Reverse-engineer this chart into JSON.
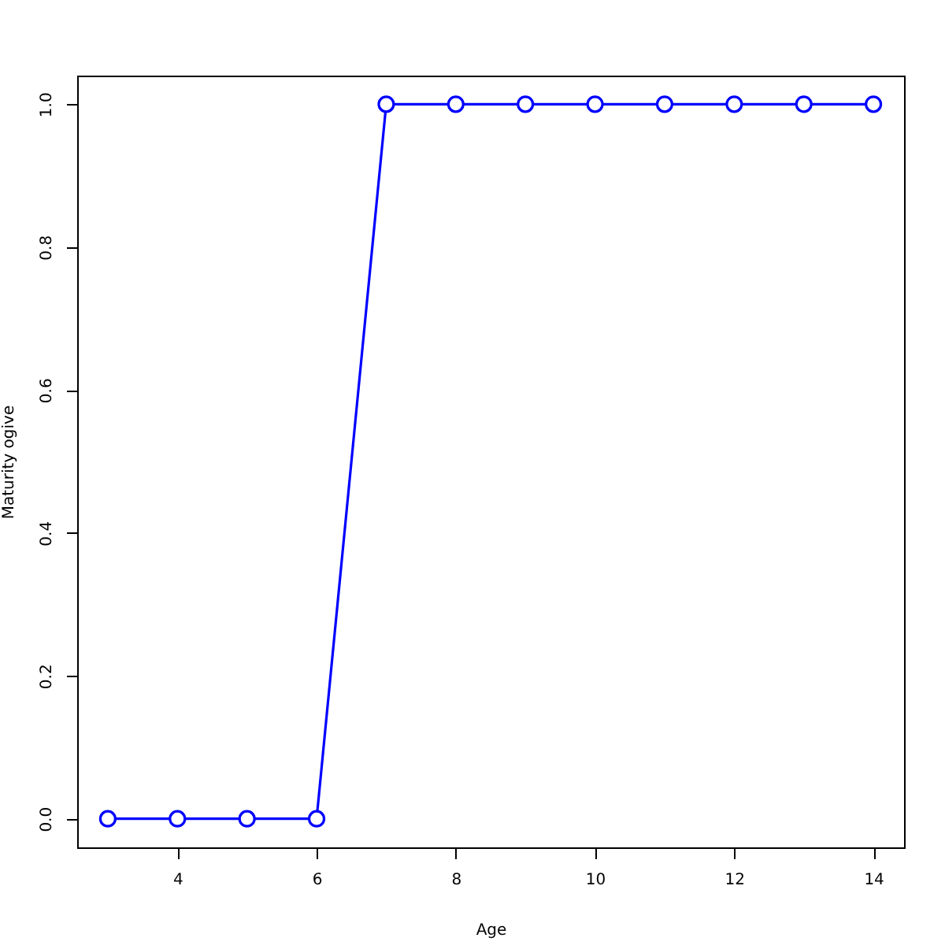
{
  "chart_data": {
    "type": "line",
    "xlabel": "Age",
    "ylabel": "Maturity ogive",
    "x": [
      3,
      4,
      5,
      6,
      7,
      8,
      9,
      10,
      11,
      12,
      13,
      14
    ],
    "series": [
      {
        "color": "#0000ff",
        "values": [
          0,
          0,
          0,
          0,
          1,
          1,
          1,
          1,
          1,
          1,
          1,
          1
        ]
      }
    ],
    "xlim": [
      2.56,
      14.44
    ],
    "ylim": [
      -0.04,
      1.04
    ],
    "xticks": [
      4,
      6,
      8,
      10,
      12,
      14
    ],
    "yticks": [
      {
        "value": 0,
        "label": "0.0"
      },
      {
        "value": 0.2,
        "label": "0.2"
      },
      {
        "value": 0.4,
        "label": "0.4"
      },
      {
        "value": 0.6,
        "label": "0.6"
      },
      {
        "value": 0.8,
        "label": "0.8"
      },
      {
        "value": 1,
        "label": "1.0"
      }
    ],
    "marker": "circle",
    "line_style": "solid"
  }
}
